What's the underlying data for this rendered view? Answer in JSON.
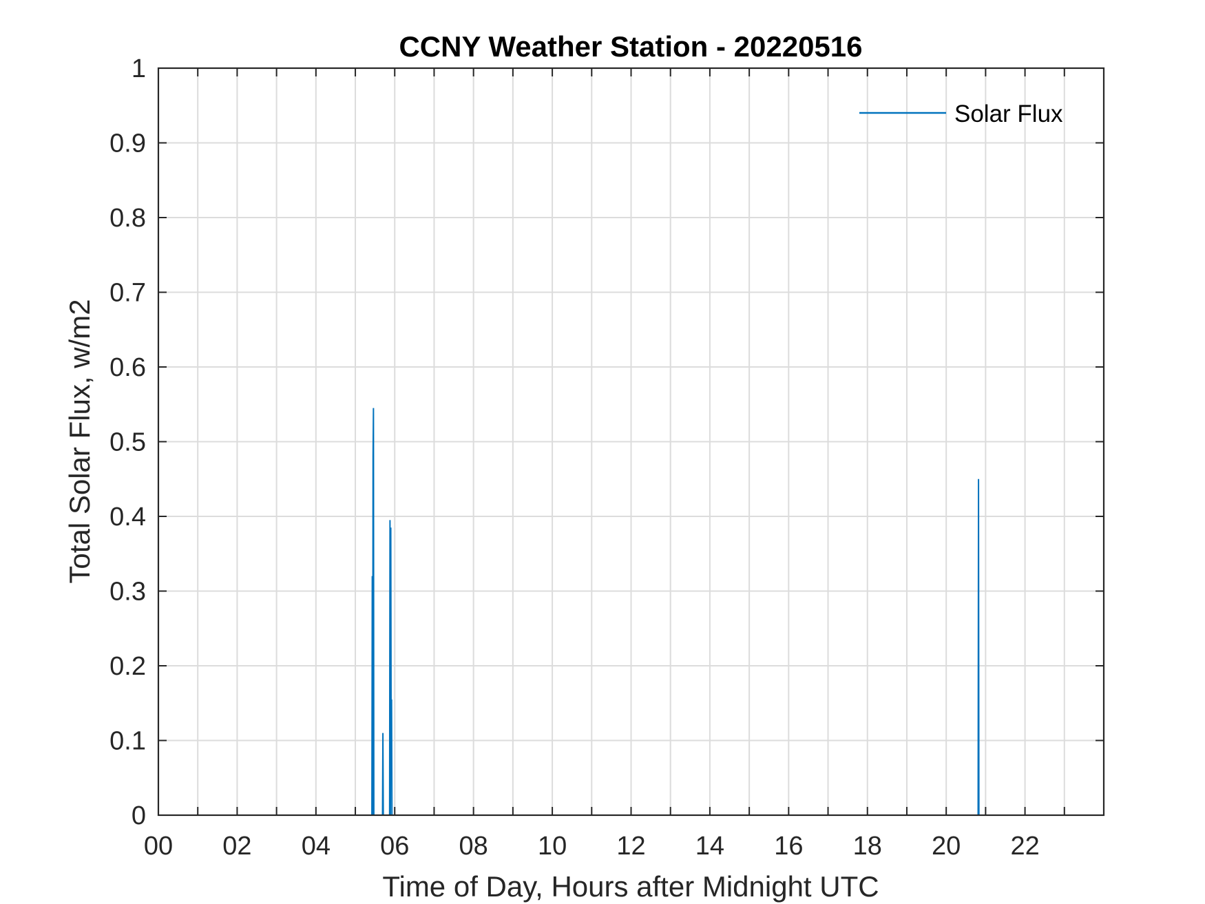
{
  "chart_data": {
    "type": "line",
    "title": "CCNY Weather Station - 20220516",
    "xlabel": "Time of Day, Hours after Midnight UTC",
    "ylabel": "Total Solar Flux, w/m2",
    "xlim": [
      0,
      24
    ],
    "ylim": [
      0,
      1
    ],
    "xticks": [
      0,
      2,
      4,
      6,
      8,
      10,
      12,
      14,
      16,
      18,
      20,
      22
    ],
    "xtick_labels": [
      "00",
      "02",
      "04",
      "06",
      "08",
      "10",
      "12",
      "14",
      "16",
      "18",
      "20",
      "22"
    ],
    "xgrid": [
      0,
      1,
      2,
      3,
      4,
      5,
      6,
      7,
      8,
      9,
      10,
      11,
      12,
      13,
      14,
      15,
      16,
      17,
      18,
      19,
      20,
      21,
      22,
      23
    ],
    "yticks": [
      0,
      0.1,
      0.2,
      0.3,
      0.4,
      0.5,
      0.6,
      0.7,
      0.8,
      0.9,
      1
    ],
    "ytick_labels": [
      "0",
      "0.1",
      "0.2",
      "0.3",
      "0.4",
      "0.5",
      "0.6",
      "0.7",
      "0.8",
      "0.9",
      "1"
    ],
    "grid": true,
    "legend_position": "top-right",
    "series": [
      {
        "name": "Solar Flux",
        "color": "#0072BD",
        "x": [
          0,
          5.42,
          5.43,
          5.44,
          5.45,
          5.46,
          5.47,
          5.48,
          5.69,
          5.7,
          5.71,
          5.87,
          5.88,
          5.89,
          5.9,
          5.91,
          5.92,
          5.93,
          5.94,
          5.95,
          20.81,
          20.82,
          20.83,
          24
        ],
        "y": [
          0,
          0,
          0.32,
          0,
          0.48,
          0.545,
          0,
          0,
          0,
          0.11,
          0,
          0,
          0.395,
          0,
          0.385,
          0.095,
          0.155,
          0,
          0,
          0,
          0,
          0.45,
          0,
          0
        ]
      }
    ]
  }
}
